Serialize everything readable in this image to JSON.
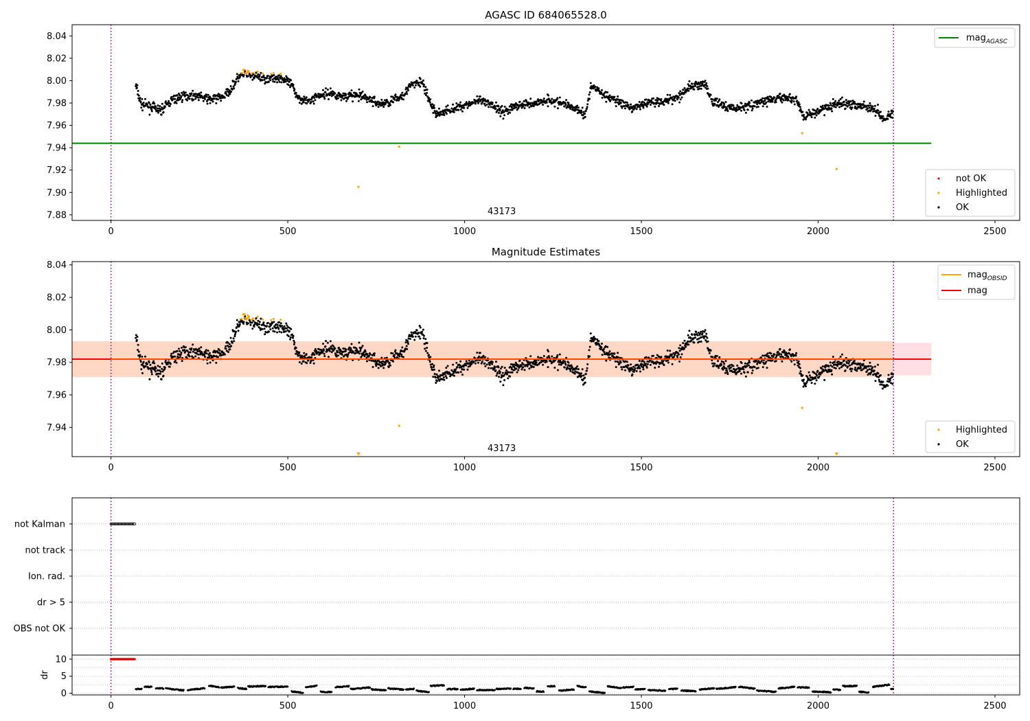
{
  "figure": {
    "colors": {
      "ok": "#000000",
      "highlighted": "#ffa500",
      "not_ok": "#ff0000",
      "mag_agasc": "#008000",
      "mag_obsid": "#ffa500",
      "mag": "#ff0000",
      "band_outer": "#ffdfe4",
      "band_inner": "#ffd6c0",
      "obs_boundary": "#800080"
    }
  },
  "chart_data": [
    {
      "id": "top",
      "type": "scatter",
      "title": "AGASC ID 684065528.0",
      "xlabel": "",
      "ylabel": "",
      "xlim": [
        -110,
        2570
      ],
      "ylim": [
        7.875,
        8.05
      ],
      "xticks": [
        0,
        500,
        1000,
        1500,
        2000,
        2500
      ],
      "yticks": [
        7.88,
        7.9,
        7.92,
        7.94,
        7.96,
        7.98,
        8.0,
        8.02,
        8.04
      ],
      "ytick_labels": [
        "7.88",
        "7.90",
        "7.92",
        "7.94",
        "7.96",
        "7.98",
        "8.00",
        "8.02",
        "8.04"
      ],
      "obsid_label": "43173",
      "obsid_label_x": 1105,
      "obs_boundaries": [
        0,
        2213
      ],
      "mag_agasc": 7.944,
      "mag_agasc_xrange": [
        -110,
        2320
      ],
      "legend_upper": [
        "mag_AGASC"
      ],
      "legend_lower": [
        "not OK",
        "Highlighted",
        "OK"
      ],
      "highlighted_outliers": [
        [
          700,
          7.905
        ],
        [
          815,
          7.941
        ],
        [
          1955,
          7.953
        ],
        [
          2052,
          7.921
        ]
      ]
    },
    {
      "id": "middle",
      "type": "scatter",
      "title": "Magnitude Estimates",
      "xlabel": "",
      "ylabel": "",
      "xlim": [
        -110,
        2570
      ],
      "ylim": [
        7.922,
        8.042
      ],
      "xticks": [
        0,
        500,
        1000,
        1500,
        2000,
        2500
      ],
      "yticks": [
        7.94,
        7.96,
        7.98,
        8.0,
        8.02,
        8.04
      ],
      "ytick_labels": [
        "7.94",
        "7.96",
        "7.98",
        "8.00",
        "8.02",
        "8.04"
      ],
      "obsid_label": "43173",
      "obsid_label_x": 1105,
      "obs_boundaries": [
        0,
        2213
      ],
      "mag": 7.982,
      "mag_obsid": 7.982,
      "band_outer": [
        7.972,
        7.992
      ],
      "band_inner": [
        7.971,
        7.993
      ],
      "band_xrange": [
        -110,
        2320
      ],
      "legend_upper": [
        "mag_OBSID",
        "mag"
      ],
      "legend_lower": [
        "Highlighted",
        "OK"
      ],
      "highlighted_outliers": [
        [
          815,
          7.941
        ],
        [
          1955,
          7.952
        ]
      ],
      "offscale_below": [
        700,
        2052
      ]
    },
    {
      "id": "flags",
      "type": "scatter",
      "title": "",
      "xlim": [
        -110,
        2570
      ],
      "categories": [
        "not Kalman",
        "not track",
        "Ion. rad.",
        "dr > 5",
        "OBS not OK"
      ],
      "flag_segments": [
        {
          "category": "not Kalman",
          "x_range": [
            0,
            68
          ]
        }
      ],
      "obs_boundaries": [
        0,
        2213
      ]
    },
    {
      "id": "dr",
      "type": "scatter",
      "title": "",
      "ylabel": "dr",
      "xlim": [
        -110,
        2570
      ],
      "ylim": [
        -0.5,
        11.2
      ],
      "yticks": [
        0,
        5,
        10
      ],
      "ytick_labels": [
        "0",
        "5",
        "10"
      ],
      "xticks": [
        0,
        500,
        1000,
        1500,
        2000,
        2500
      ],
      "clipped_points": {
        "x_range": [
          0,
          68
        ],
        "value": 10
      },
      "obs_boundaries": [
        0,
        2213
      ]
    }
  ]
}
